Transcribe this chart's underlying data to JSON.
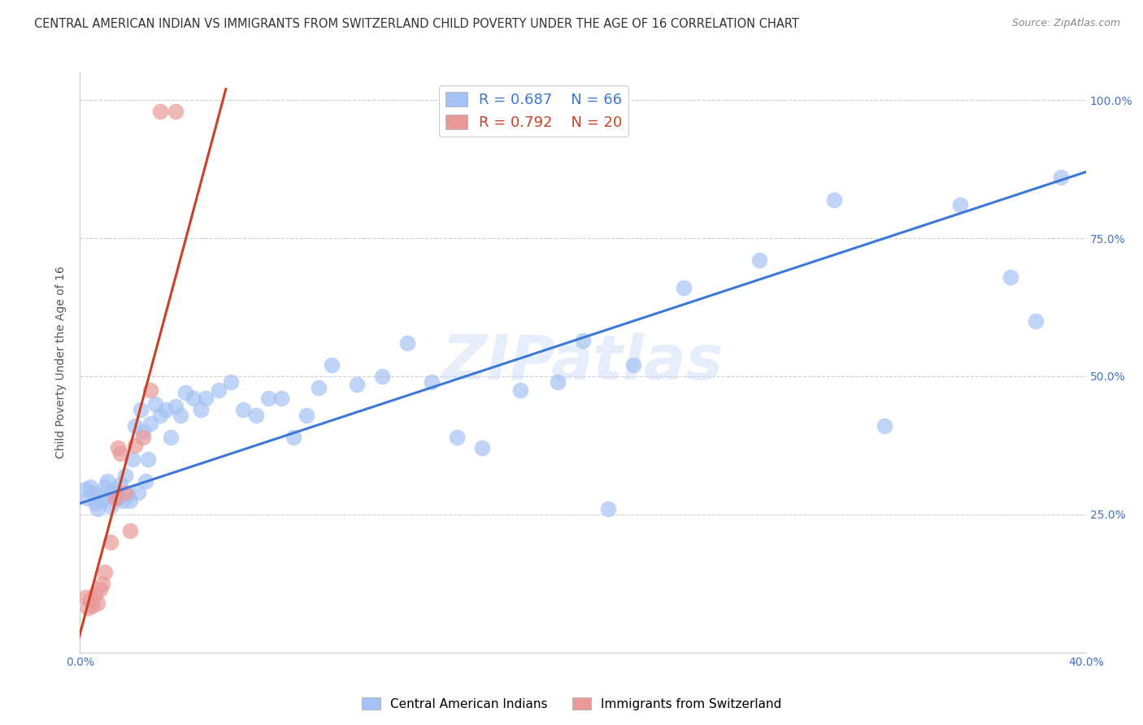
{
  "title": "CENTRAL AMERICAN INDIAN VS IMMIGRANTS FROM SWITZERLAND CHILD POVERTY UNDER THE AGE OF 16 CORRELATION CHART",
  "source": "Source: ZipAtlas.com",
  "ylabel": "Child Poverty Under the Age of 16",
  "xlim": [
    0.0,
    0.4
  ],
  "ylim": [
    0.0,
    1.05
  ],
  "blue_R": 0.687,
  "blue_N": 66,
  "pink_R": 0.792,
  "pink_N": 20,
  "blue_color": "#a4c2f4",
  "pink_color": "#ea9999",
  "trendline_blue": "#3c78d8",
  "trendline_pink": "#cc4125",
  "watermark": "ZIPatlas",
  "blue_scatter_x": [
    0.002,
    0.003,
    0.004,
    0.005,
    0.006,
    0.007,
    0.008,
    0.009,
    0.01,
    0.011,
    0.012,
    0.013,
    0.014,
    0.015,
    0.016,
    0.017,
    0.018,
    0.019,
    0.02,
    0.021,
    0.022,
    0.023,
    0.024,
    0.025,
    0.026,
    0.027,
    0.028,
    0.03,
    0.032,
    0.034,
    0.036,
    0.038,
    0.04,
    0.042,
    0.045,
    0.048,
    0.05,
    0.055,
    0.06,
    0.065,
    0.07,
    0.075,
    0.08,
    0.085,
    0.09,
    0.095,
    0.1,
    0.11,
    0.12,
    0.13,
    0.14,
    0.15,
    0.16,
    0.175,
    0.19,
    0.2,
    0.21,
    0.22,
    0.24,
    0.27,
    0.3,
    0.32,
    0.35,
    0.37,
    0.38,
    0.39
  ],
  "blue_scatter_y": [
    0.295,
    0.28,
    0.3,
    0.29,
    0.27,
    0.26,
    0.285,
    0.275,
    0.3,
    0.31,
    0.265,
    0.29,
    0.295,
    0.28,
    0.305,
    0.275,
    0.32,
    0.285,
    0.275,
    0.35,
    0.41,
    0.29,
    0.44,
    0.4,
    0.31,
    0.35,
    0.415,
    0.45,
    0.43,
    0.44,
    0.39,
    0.445,
    0.43,
    0.47,
    0.46,
    0.44,
    0.46,
    0.475,
    0.49,
    0.44,
    0.43,
    0.46,
    0.46,
    0.39,
    0.43,
    0.48,
    0.52,
    0.485,
    0.5,
    0.56,
    0.49,
    0.39,
    0.37,
    0.475,
    0.49,
    0.565,
    0.26,
    0.52,
    0.66,
    0.71,
    0.82,
    0.41,
    0.81,
    0.68,
    0.6,
    0.86
  ],
  "pink_scatter_x": [
    0.002,
    0.003,
    0.004,
    0.005,
    0.006,
    0.007,
    0.008,
    0.009,
    0.01,
    0.012,
    0.014,
    0.015,
    0.016,
    0.018,
    0.02,
    0.022,
    0.025,
    0.028,
    0.032,
    0.038
  ],
  "pink_scatter_y": [
    0.1,
    0.08,
    0.095,
    0.085,
    0.105,
    0.09,
    0.115,
    0.125,
    0.145,
    0.2,
    0.28,
    0.37,
    0.36,
    0.29,
    0.22,
    0.375,
    0.39,
    0.475,
    0.98,
    0.98
  ],
  "blue_line_x": [
    0.0,
    0.4
  ],
  "blue_line_y": [
    0.27,
    0.87
  ],
  "pink_line_x": [
    -0.002,
    0.058
  ],
  "pink_line_y": [
    0.0,
    1.02
  ],
  "background_color": "#ffffff",
  "grid_color": "#d0d0d0",
  "title_fontsize": 10.5,
  "axis_label_fontsize": 10,
  "tick_fontsize": 10,
  "legend_fontsize": 13,
  "watermark_fontsize": 55,
  "watermark_color": "#c9daf8",
  "watermark_alpha": 0.45
}
